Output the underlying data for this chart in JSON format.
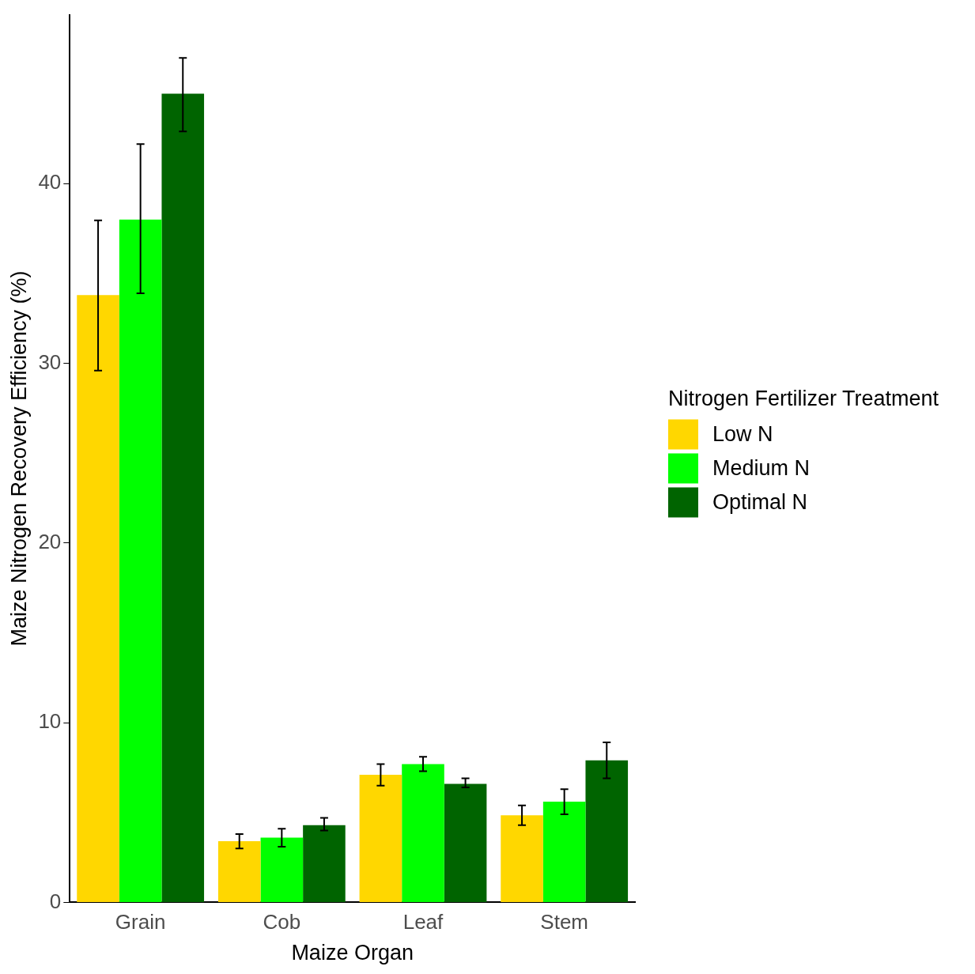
{
  "chart_data": {
    "type": "bar",
    "xlabel": "Maize Organ",
    "ylabel": "Maize Nitrogen Recovery Efficiency (%)",
    "legend_title": "Nitrogen Fertilizer Treatment",
    "legend": "right",
    "grid": false,
    "categories": [
      "Grain",
      "Cob",
      "Leaf",
      "Stem"
    ],
    "ylim": [
      0,
      49.4
    ],
    "yticks": [
      0,
      10,
      20,
      30,
      40
    ],
    "series": [
      {
        "name": "Low N",
        "color": "#ffd700",
        "values": [
          33.8,
          3.4,
          7.1,
          4.85
        ],
        "errors": [
          [
            29.6,
            37.95
          ],
          [
            3.0,
            3.8
          ],
          [
            6.5,
            7.7
          ],
          [
            4.3,
            5.4
          ]
        ]
      },
      {
        "name": "Medium N",
        "color": "#00ff00",
        "values": [
          38.0,
          3.6,
          7.7,
          5.6
        ],
        "errors": [
          [
            33.9,
            42.2
          ],
          [
            3.1,
            4.1
          ],
          [
            7.3,
            8.1
          ],
          [
            4.9,
            6.3
          ]
        ]
      },
      {
        "name": "Optimal N",
        "color": "#006400",
        "values": [
          45.0,
          4.3,
          6.6,
          7.9
        ],
        "errors": [
          [
            42.9,
            47.0
          ],
          [
            4.0,
            4.7
          ],
          [
            6.4,
            6.9
          ],
          [
            6.9,
            8.9
          ]
        ]
      }
    ]
  }
}
